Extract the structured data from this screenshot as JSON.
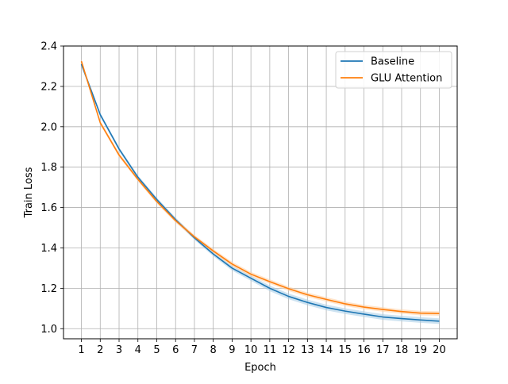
{
  "chart_data": {
    "type": "line",
    "title": "",
    "xlabel": "Epoch",
    "ylabel": "Train Loss",
    "x": [
      1,
      2,
      3,
      4,
      5,
      6,
      7,
      8,
      9,
      10,
      11,
      12,
      13,
      14,
      15,
      16,
      17,
      18,
      19,
      20
    ],
    "xticks": [
      "1",
      "2",
      "3",
      "4",
      "5",
      "6",
      "7",
      "8",
      "9",
      "10",
      "11",
      "12",
      "13",
      "14",
      "15",
      "16",
      "17",
      "18",
      "19",
      "20"
    ],
    "yticks": [
      "1.0",
      "1.2",
      "1.4",
      "1.6",
      "1.8",
      "2.0",
      "2.2",
      "2.4"
    ],
    "ytick_values": [
      1.0,
      1.2,
      1.4,
      1.6,
      1.8,
      2.0,
      2.2,
      2.4
    ],
    "xlim": [
      0.05,
      20.95
    ],
    "ylim": [
      0.95,
      2.4
    ],
    "grid": true,
    "legend_position": "top-right",
    "series": [
      {
        "name": "Baseline",
        "color": "#1f77b4",
        "band_color": "#a6cce6",
        "values": [
          2.31,
          2.06,
          1.89,
          1.75,
          1.64,
          1.54,
          1.45,
          1.37,
          1.3,
          1.25,
          1.2,
          1.16,
          1.13,
          1.105,
          1.087,
          1.072,
          1.058,
          1.05,
          1.043,
          1.037
        ],
        "band": [
          0.012,
          0.01,
          0.01,
          0.01,
          0.01,
          0.01,
          0.01,
          0.011,
          0.012,
          0.013,
          0.014,
          0.014,
          0.014,
          0.014,
          0.014,
          0.014,
          0.014,
          0.014,
          0.014,
          0.014
        ]
      },
      {
        "name": "GLU Attention",
        "color": "#ff7f0e",
        "band_color": "#ffcfa3",
        "values": [
          2.325,
          2.02,
          1.86,
          1.74,
          1.63,
          1.535,
          1.455,
          1.385,
          1.32,
          1.27,
          1.233,
          1.198,
          1.168,
          1.145,
          1.123,
          1.107,
          1.095,
          1.085,
          1.077,
          1.075
        ],
        "band": [
          0.01,
          0.01,
          0.01,
          0.01,
          0.01,
          0.01,
          0.01,
          0.01,
          0.011,
          0.011,
          0.011,
          0.011,
          0.011,
          0.011,
          0.011,
          0.011,
          0.011,
          0.011,
          0.011,
          0.011
        ]
      }
    ]
  }
}
